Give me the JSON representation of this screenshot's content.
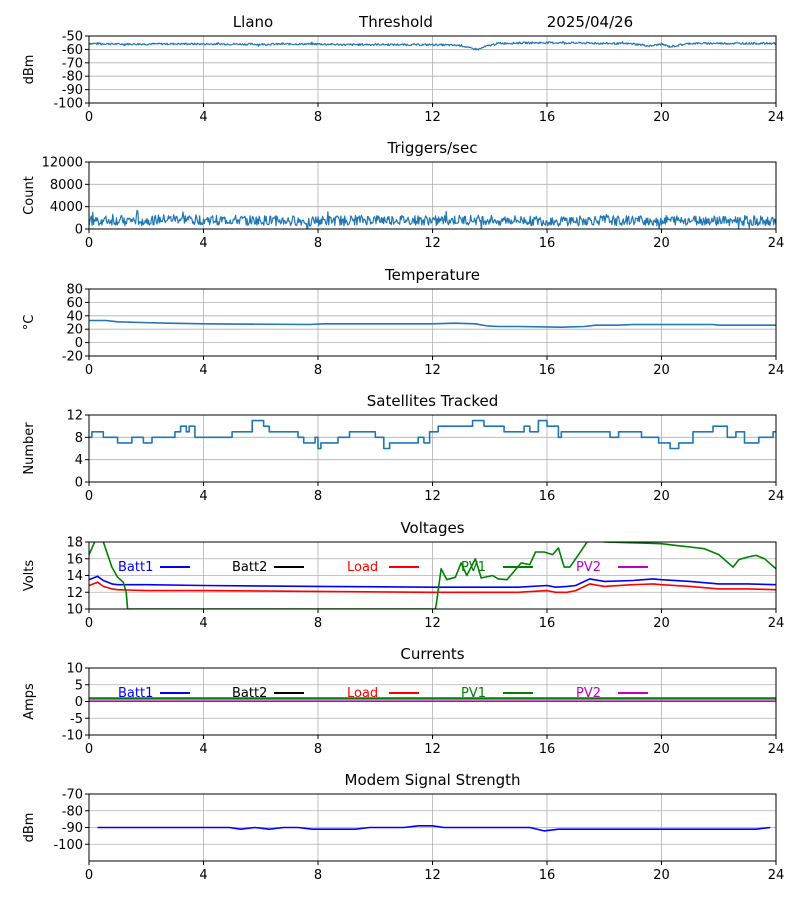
{
  "header": {
    "site": "Llano",
    "mode": "Threshold",
    "date": "2025/04/26"
  },
  "x_ticks": [
    0,
    4,
    8,
    12,
    16,
    20,
    24
  ],
  "colors": {
    "default": "#1f77b4",
    "Batt1": "#0000ff",
    "Batt2": "#000000",
    "Load": "#ff0000",
    "PV1": "#008000",
    "PV2": "#bf00bf",
    "grid": "#b0b0b0"
  },
  "chart_data": [
    {
      "id": "signal",
      "type": "line",
      "title": "",
      "ylabel": "dBm",
      "xlim": [
        0,
        24
      ],
      "ylim": [
        -100,
        -50
      ],
      "yticks": [
        -50,
        -60,
        -70,
        -80,
        -90,
        -100
      ],
      "grid": true,
      "series": [
        {
          "color": "#1f77b4",
          "noise": 0.7,
          "x": [
            0,
            1,
            2,
            3,
            4,
            5,
            6,
            7,
            8,
            9,
            10,
            11,
            12,
            13,
            13.3,
            13.6,
            13.9,
            14.3,
            15,
            16,
            17,
            18,
            19,
            19.6,
            20,
            20.3,
            21,
            22,
            23,
            24
          ],
          "y": [
            -55.5,
            -56,
            -56,
            -55.8,
            -56,
            -56,
            -56.2,
            -56,
            -56,
            -56.5,
            -56.3,
            -56.5,
            -56.5,
            -57,
            -59,
            -60,
            -57.5,
            -55.5,
            -55.2,
            -55,
            -55.2,
            -55.5,
            -55.8,
            -57.5,
            -56,
            -58,
            -55.5,
            -55.5,
            -55.5,
            -55.5
          ]
        }
      ]
    },
    {
      "id": "triggers",
      "type": "line",
      "title": "Triggers/sec",
      "ylabel": "Count",
      "xlim": [
        0,
        24
      ],
      "ylim": [
        0,
        12000
      ],
      "yticks": [
        0,
        4000,
        8000,
        12000
      ],
      "grid": true,
      "series": [
        {
          "color": "#1f77b4",
          "noise": 900,
          "x": [
            0,
            2,
            3,
            4,
            6,
            8,
            10,
            12,
            14,
            16,
            18,
            20,
            22,
            24
          ],
          "y": [
            1500,
            1500,
            1800,
            1600,
            1500,
            1400,
            1600,
            1500,
            1600,
            1400,
            1500,
            1500,
            1500,
            1500
          ]
        }
      ]
    },
    {
      "id": "temperature",
      "type": "line",
      "title": "Temperature",
      "ylabel": "°C",
      "xlim": [
        0,
        24
      ],
      "ylim": [
        -20,
        80
      ],
      "yticks": [
        -20,
        0,
        20,
        40,
        60,
        80
      ],
      "grid": true,
      "series": [
        {
          "color": "#1f77b4",
          "noise": 0,
          "x": [
            0,
            0.6,
            1,
            1.8,
            2.8,
            4,
            7.7,
            8.2,
            12,
            12.8,
            13.5,
            13.9,
            14.3,
            15,
            16.5,
            17.3,
            17.7,
            18.5,
            19,
            21.8,
            22,
            24
          ],
          "y": [
            33,
            33,
            31,
            30,
            29,
            28,
            27,
            28,
            28,
            29,
            28,
            25,
            24,
            24,
            23,
            24,
            26,
            26,
            27,
            27,
            26,
            26
          ]
        }
      ]
    },
    {
      "id": "satellites",
      "type": "line",
      "title": "Satellites Tracked",
      "ylabel": "Number",
      "xlim": [
        0,
        24
      ],
      "ylim": [
        0,
        12
      ],
      "yticks": [
        0,
        4,
        8,
        12
      ],
      "grid": true,
      "series": [
        {
          "color": "#1f77b4",
          "noise": 0,
          "step": true,
          "x": [
            0,
            0.1,
            0.5,
            1,
            1.5,
            1.9,
            2.2,
            3,
            3.2,
            3.4,
            3.5,
            3.7,
            4.7,
            5,
            5.7,
            6.1,
            6.3,
            7.3,
            7.5,
            7.9,
            8,
            8.1,
            8.7,
            9.1,
            10,
            10.3,
            10.5,
            11,
            11.5,
            11.7,
            11.9,
            12.2,
            12.6,
            13.4,
            13.8,
            14.5,
            15.2,
            15.4,
            15.7,
            16,
            16.4,
            16.5,
            17.2,
            18.2,
            18.5,
            19.3,
            19.7,
            19.9,
            20.3,
            20.6,
            21.1,
            21.8,
            22,
            22.3,
            22.6,
            22.9,
            23.4,
            23.9
          ],
          "y": [
            8,
            9,
            8,
            7,
            8,
            7,
            8,
            9,
            10,
            9,
            10,
            8,
            8,
            9,
            11,
            10,
            9,
            8,
            7,
            8,
            6,
            7,
            8,
            9,
            8,
            6,
            7,
            7,
            8,
            7,
            9,
            10,
            10,
            11,
            10,
            9,
            10,
            9,
            11,
            10,
            8,
            9,
            9,
            8,
            9,
            8,
            8,
            7,
            6,
            7,
            9,
            10,
            10,
            8,
            9,
            7,
            8,
            9
          ]
        }
      ]
    },
    {
      "id": "voltages",
      "type": "line",
      "title": "Voltages",
      "ylabel": "Volts",
      "xlim": [
        0,
        24
      ],
      "ylim": [
        10,
        18
      ],
      "yticks": [
        10,
        12,
        14,
        16,
        18
      ],
      "grid": true,
      "legend": [
        "Batt1",
        "Batt2",
        "Load",
        "PV1",
        "PV2"
      ],
      "series": [
        {
          "name": "Batt1",
          "color": "#0000ff",
          "noise": 0,
          "x": [
            0,
            0.3,
            0.5,
            0.8,
            1,
            2,
            4,
            8,
            12,
            15,
            16,
            16.3,
            16.7,
            17,
            17.5,
            18,
            19,
            19.7,
            20,
            21,
            22,
            23,
            24
          ],
          "y": [
            13.5,
            13.9,
            13.4,
            13.0,
            12.9,
            12.9,
            12.8,
            12.7,
            12.6,
            12.6,
            12.8,
            12.6,
            12.7,
            12.8,
            13.6,
            13.3,
            13.4,
            13.6,
            13.5,
            13.3,
            13.0,
            13.0,
            12.9
          ]
        },
        {
          "name": "Load",
          "color": "#ff0000",
          "noise": 0,
          "x": [
            0,
            0.3,
            0.5,
            0.8,
            1,
            2,
            4,
            8,
            12,
            15,
            16,
            16.3,
            16.7,
            17,
            17.5,
            18,
            19,
            19.7,
            20,
            21,
            22,
            23,
            24
          ],
          "y": [
            12.8,
            13.2,
            12.7,
            12.4,
            12.3,
            12.2,
            12.2,
            12.1,
            12.0,
            12.0,
            12.2,
            12.0,
            12.0,
            12.2,
            13.0,
            12.7,
            12.9,
            13.0,
            12.9,
            12.7,
            12.4,
            12.4,
            12.3
          ]
        },
        {
          "name": "PV1",
          "color": "#008000",
          "noise": 0,
          "x": [
            0,
            0.2,
            0.4,
            0.8,
            1.0,
            1.2,
            1.3,
            1.35,
            12.1,
            12.15,
            12.3,
            12.5,
            12.8,
            13.0,
            13.2,
            13.5,
            13.7,
            14.1,
            14.3,
            14.6,
            14.8,
            15.1,
            15.4,
            15.6,
            15.9,
            16.2,
            16.4,
            16.6,
            16.8,
            17.2,
            17.4,
            17.6,
            18,
            19,
            20,
            20.5,
            21,
            21.5,
            22,
            22.5,
            22.7,
            23,
            23.3,
            23.6,
            24
          ],
          "y": [
            16.5,
            18.0,
            19.0,
            15.0,
            13.8,
            13.2,
            12.0,
            10.0,
            10.0,
            11.0,
            14.8,
            13.5,
            13.8,
            15.5,
            14.0,
            16.0,
            13.7,
            14.0,
            13.6,
            13.5,
            14.3,
            15.5,
            15.3,
            16.8,
            16.8,
            16.5,
            17.3,
            15.0,
            15.0,
            17.0,
            18.0,
            18.3,
            18.0,
            17.9,
            17.8,
            17.6,
            17.4,
            17.2,
            16.5,
            15.0,
            15.9,
            16.2,
            16.4,
            16.0,
            14.8
          ]
        }
      ]
    },
    {
      "id": "currents",
      "type": "line",
      "title": "Currents",
      "ylabel": "Amps",
      "xlim": [
        0,
        24
      ],
      "ylim": [
        -10,
        10
      ],
      "yticks": [
        -10,
        -5,
        0,
        5,
        10
      ],
      "grid": true,
      "legend": [
        "Batt1",
        "Batt2",
        "Load",
        "PV1",
        "PV2"
      ],
      "series": [
        {
          "name": "Load",
          "color": "#ff0000",
          "noise": 0,
          "x": [
            0,
            24
          ],
          "y": [
            1.0,
            1.0
          ]
        },
        {
          "name": "PV1",
          "color": "#008000",
          "noise": 0,
          "x": [
            0,
            24
          ],
          "y": [
            0.8,
            0.8
          ]
        },
        {
          "name": "PV2",
          "color": "#bf00bf",
          "noise": 0,
          "x": [
            0,
            24
          ],
          "y": [
            0.1,
            0.1
          ]
        }
      ]
    },
    {
      "id": "modem",
      "type": "line",
      "title": "Modem Signal Strength",
      "ylabel": "dBm",
      "xlim": [
        0,
        24
      ],
      "ylim": [
        -110,
        -70
      ],
      "yticks": [
        -70,
        -80,
        -90,
        -100
      ],
      "grid": true,
      "series": [
        {
          "color": "#0000ff",
          "noise": 0,
          "x": [
            0.3,
            1,
            2,
            3,
            4,
            4.9,
            5.3,
            5.8,
            6.3,
            6.8,
            7.3,
            7.8,
            8.3,
            9.3,
            9.8,
            10.3,
            11.0,
            11.5,
            12.0,
            12.4,
            13.0,
            14.0,
            15.4,
            15.9,
            16.4,
            17,
            18,
            20,
            22,
            23.3,
            23.8
          ],
          "y": [
            -90,
            -90,
            -90,
            -90,
            -90,
            -90,
            -91,
            -90,
            -91,
            -90,
            -90,
            -91,
            -91,
            -91,
            -90,
            -90,
            -90,
            -89,
            -89,
            -90,
            -90,
            -90,
            -90,
            -92,
            -91,
            -91,
            -91,
            -91,
            -91,
            -91,
            -90
          ]
        }
      ]
    }
  ]
}
